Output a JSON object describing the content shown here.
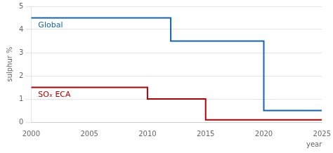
{
  "chart_data": {
    "type": "line",
    "x_label": "year",
    "y_label": "sulphur %",
    "series": [
      {
        "name": "Global",
        "color": "#1464b4",
        "x": [
          2000,
          2012,
          2012,
          2020,
          2020,
          2025
        ],
        "values": [
          4.5,
          4.5,
          3.5,
          3.5,
          0.5,
          0.5
        ]
      },
      {
        "name": "SOₓ ECA",
        "color": "#b40000",
        "x": [
          2000,
          2010,
          2010,
          2015,
          2015,
          2025
        ],
        "values": [
          1.5,
          1.5,
          1.0,
          1.0,
          0.1,
          0.1
        ]
      }
    ],
    "xlim": [
      2000,
      2025
    ],
    "ylim": [
      0,
      5
    ],
    "xticks": [
      2000,
      2005,
      2010,
      2015,
      2020,
      2025
    ],
    "yticks": [
      0,
      1,
      2,
      3,
      4,
      5
    ],
    "grid": "y"
  }
}
